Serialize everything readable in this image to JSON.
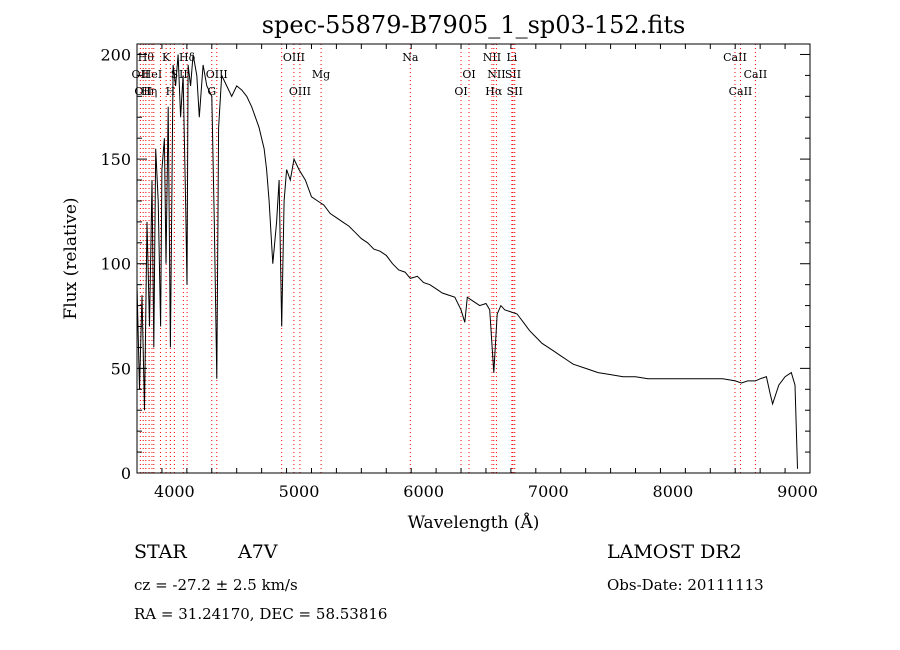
{
  "chart_data": {
    "type": "line",
    "title": "spec-55879-B7905_1_sp03-152.fits",
    "xlabel": "Wavelength (Å)",
    "ylabel": "Flux (relative)",
    "xlim": [
      3700,
      9100
    ],
    "ylim": [
      0,
      205
    ],
    "xticks": [
      4000,
      5000,
      6000,
      7000,
      8000,
      9000
    ],
    "yticks": [
      0,
      50,
      100,
      150,
      200
    ],
    "grid": false,
    "line_color": "#000000",
    "marker_color": "#ff0000",
    "series": [
      {
        "x": [
          3700,
          3720,
          3740,
          3760,
          3780,
          3800,
          3820,
          3835,
          3850,
          3870,
          3889,
          3900,
          3920,
          3933,
          3950,
          3968,
          3990,
          4010,
          4030,
          4050,
          4070,
          4090,
          4101,
          4110,
          4130,
          4150,
          4180,
          4200,
          4230,
          4260,
          4300,
          4320,
          4340,
          4355,
          4380,
          4420,
          4460,
          4500,
          4540,
          4580,
          4620,
          4650,
          4680,
          4700,
          4720,
          4740,
          4760,
          4790,
          4820,
          4840,
          4861,
          4880,
          4900,
          4930,
          4960,
          5000,
          5050,
          5100,
          5150,
          5200,
          5250,
          5300,
          5350,
          5400,
          5450,
          5500,
          5550,
          5600,
          5650,
          5700,
          5750,
          5800,
          5850,
          5893,
          5950,
          6000,
          6050,
          6100,
          6150,
          6200,
          6250,
          6300,
          6330,
          6350,
          6400,
          6450,
          6500,
          6530,
          6563,
          6590,
          6620,
          6650,
          6700,
          6750,
          6800,
          6850,
          6900,
          6950,
          7000,
          7050,
          7100,
          7150,
          7200,
          7300,
          7400,
          7500,
          7600,
          7700,
          7800,
          7900,
          8000,
          8100,
          8200,
          8300,
          8400,
          8500,
          8550,
          8600,
          8662,
          8700,
          8750,
          8780,
          8800,
          8850,
          8900,
          8950,
          8980,
          9000
        ],
        "y": [
          90,
          40,
          85,
          30,
          120,
          70,
          140,
          60,
          155,
          130,
          70,
          145,
          160,
          100,
          175,
          60,
          195,
          185,
          200,
          170,
          190,
          130,
          90,
          195,
          185,
          200,
          190,
          170,
          195,
          185,
          180,
          120,
          45,
          165,
          190,
          185,
          180,
          185,
          183,
          180,
          175,
          170,
          165,
          160,
          155,
          145,
          130,
          100,
          120,
          140,
          70,
          130,
          145,
          140,
          150,
          145,
          140,
          132,
          130,
          128,
          124,
          122,
          120,
          118,
          115,
          112,
          110,
          107,
          106,
          104,
          100,
          97,
          96,
          93,
          94,
          91,
          90,
          88,
          86,
          85,
          84,
          78,
          72,
          84,
          82,
          80,
          81,
          78,
          48,
          76,
          80,
          78,
          77,
          76,
          72,
          68,
          65,
          62,
          60,
          58,
          56,
          54,
          52,
          50,
          48,
          47,
          46,
          46,
          45,
          45,
          45,
          45,
          45,
          45,
          45,
          44,
          43,
          44,
          44,
          45,
          46,
          38,
          33,
          42,
          46,
          48,
          42,
          2
        ]
      }
    ],
    "lines": [
      {
        "wavelength": 3727,
        "label": "OII",
        "row": 2
      },
      {
        "wavelength": 3750,
        "label": "OII",
        "row": 3
      },
      {
        "wavelength": 3771,
        "label": "Hθ",
        "row": 1
      },
      {
        "wavelength": 3797,
        "label": "Hη",
        "row": 3
      },
      {
        "wavelength": 3820,
        "label": "HeI",
        "row": 2
      },
      {
        "wavelength": 3835,
        "label": "",
        "row": 0
      },
      {
        "wavelength": 3889,
        "label": "",
        "row": 0
      },
      {
        "wavelength": 3934,
        "label": "K",
        "row": 1
      },
      {
        "wavelength": 3968,
        "label": "H",
        "row": 3
      },
      {
        "wavelength": 4000,
        "label": "S",
        "row": 2
      },
      {
        "wavelength": 4072,
        "label": "II",
        "row": 2
      },
      {
        "wavelength": 4102,
        "label": "Hδ",
        "row": 1
      },
      {
        "wavelength": 4300,
        "label": "G",
        "row": 3
      },
      {
        "wavelength": 4340,
        "label": "OIII",
        "row": 2
      },
      {
        "wavelength": 4861,
        "label": "",
        "row": 0
      },
      {
        "wavelength": 4959,
        "label": "OIII",
        "row": 1
      },
      {
        "wavelength": 5007,
        "label": "OIII",
        "row": 3
      },
      {
        "wavelength": 5177,
        "label": "Mg",
        "row": 2
      },
      {
        "wavelength": 5893,
        "label": "Na",
        "row": 1
      },
      {
        "wavelength": 6300,
        "label": "OI",
        "row": 3
      },
      {
        "wavelength": 6364,
        "label": "OI",
        "row": 2
      },
      {
        "wavelength": 6548,
        "label": "NII",
        "row": 1
      },
      {
        "wavelength": 6563,
        "label": "Hα",
        "row": 3
      },
      {
        "wavelength": 6584,
        "label": "NII",
        "row": 2
      },
      {
        "wavelength": 6708,
        "label": "Li",
        "row": 1
      },
      {
        "wavelength": 6717,
        "label": "SII",
        "row": 2
      },
      {
        "wavelength": 6731,
        "label": "SII",
        "row": 3
      },
      {
        "wavelength": 8498,
        "label": "CaII",
        "row": 1
      },
      {
        "wavelength": 8542,
        "label": "CaII",
        "row": 3
      },
      {
        "wavelength": 8662,
        "label": "CaII",
        "row": 2
      }
    ]
  },
  "info": {
    "object_type": "STAR",
    "spectral_class": "A7V",
    "survey": "LAMOST DR2",
    "redshift": "cz = -27.2 ± 2.5 km/s",
    "obs_date": "Obs-Date: 20111113",
    "coords": "RA =  31.24170, DEC =  58.53816"
  }
}
